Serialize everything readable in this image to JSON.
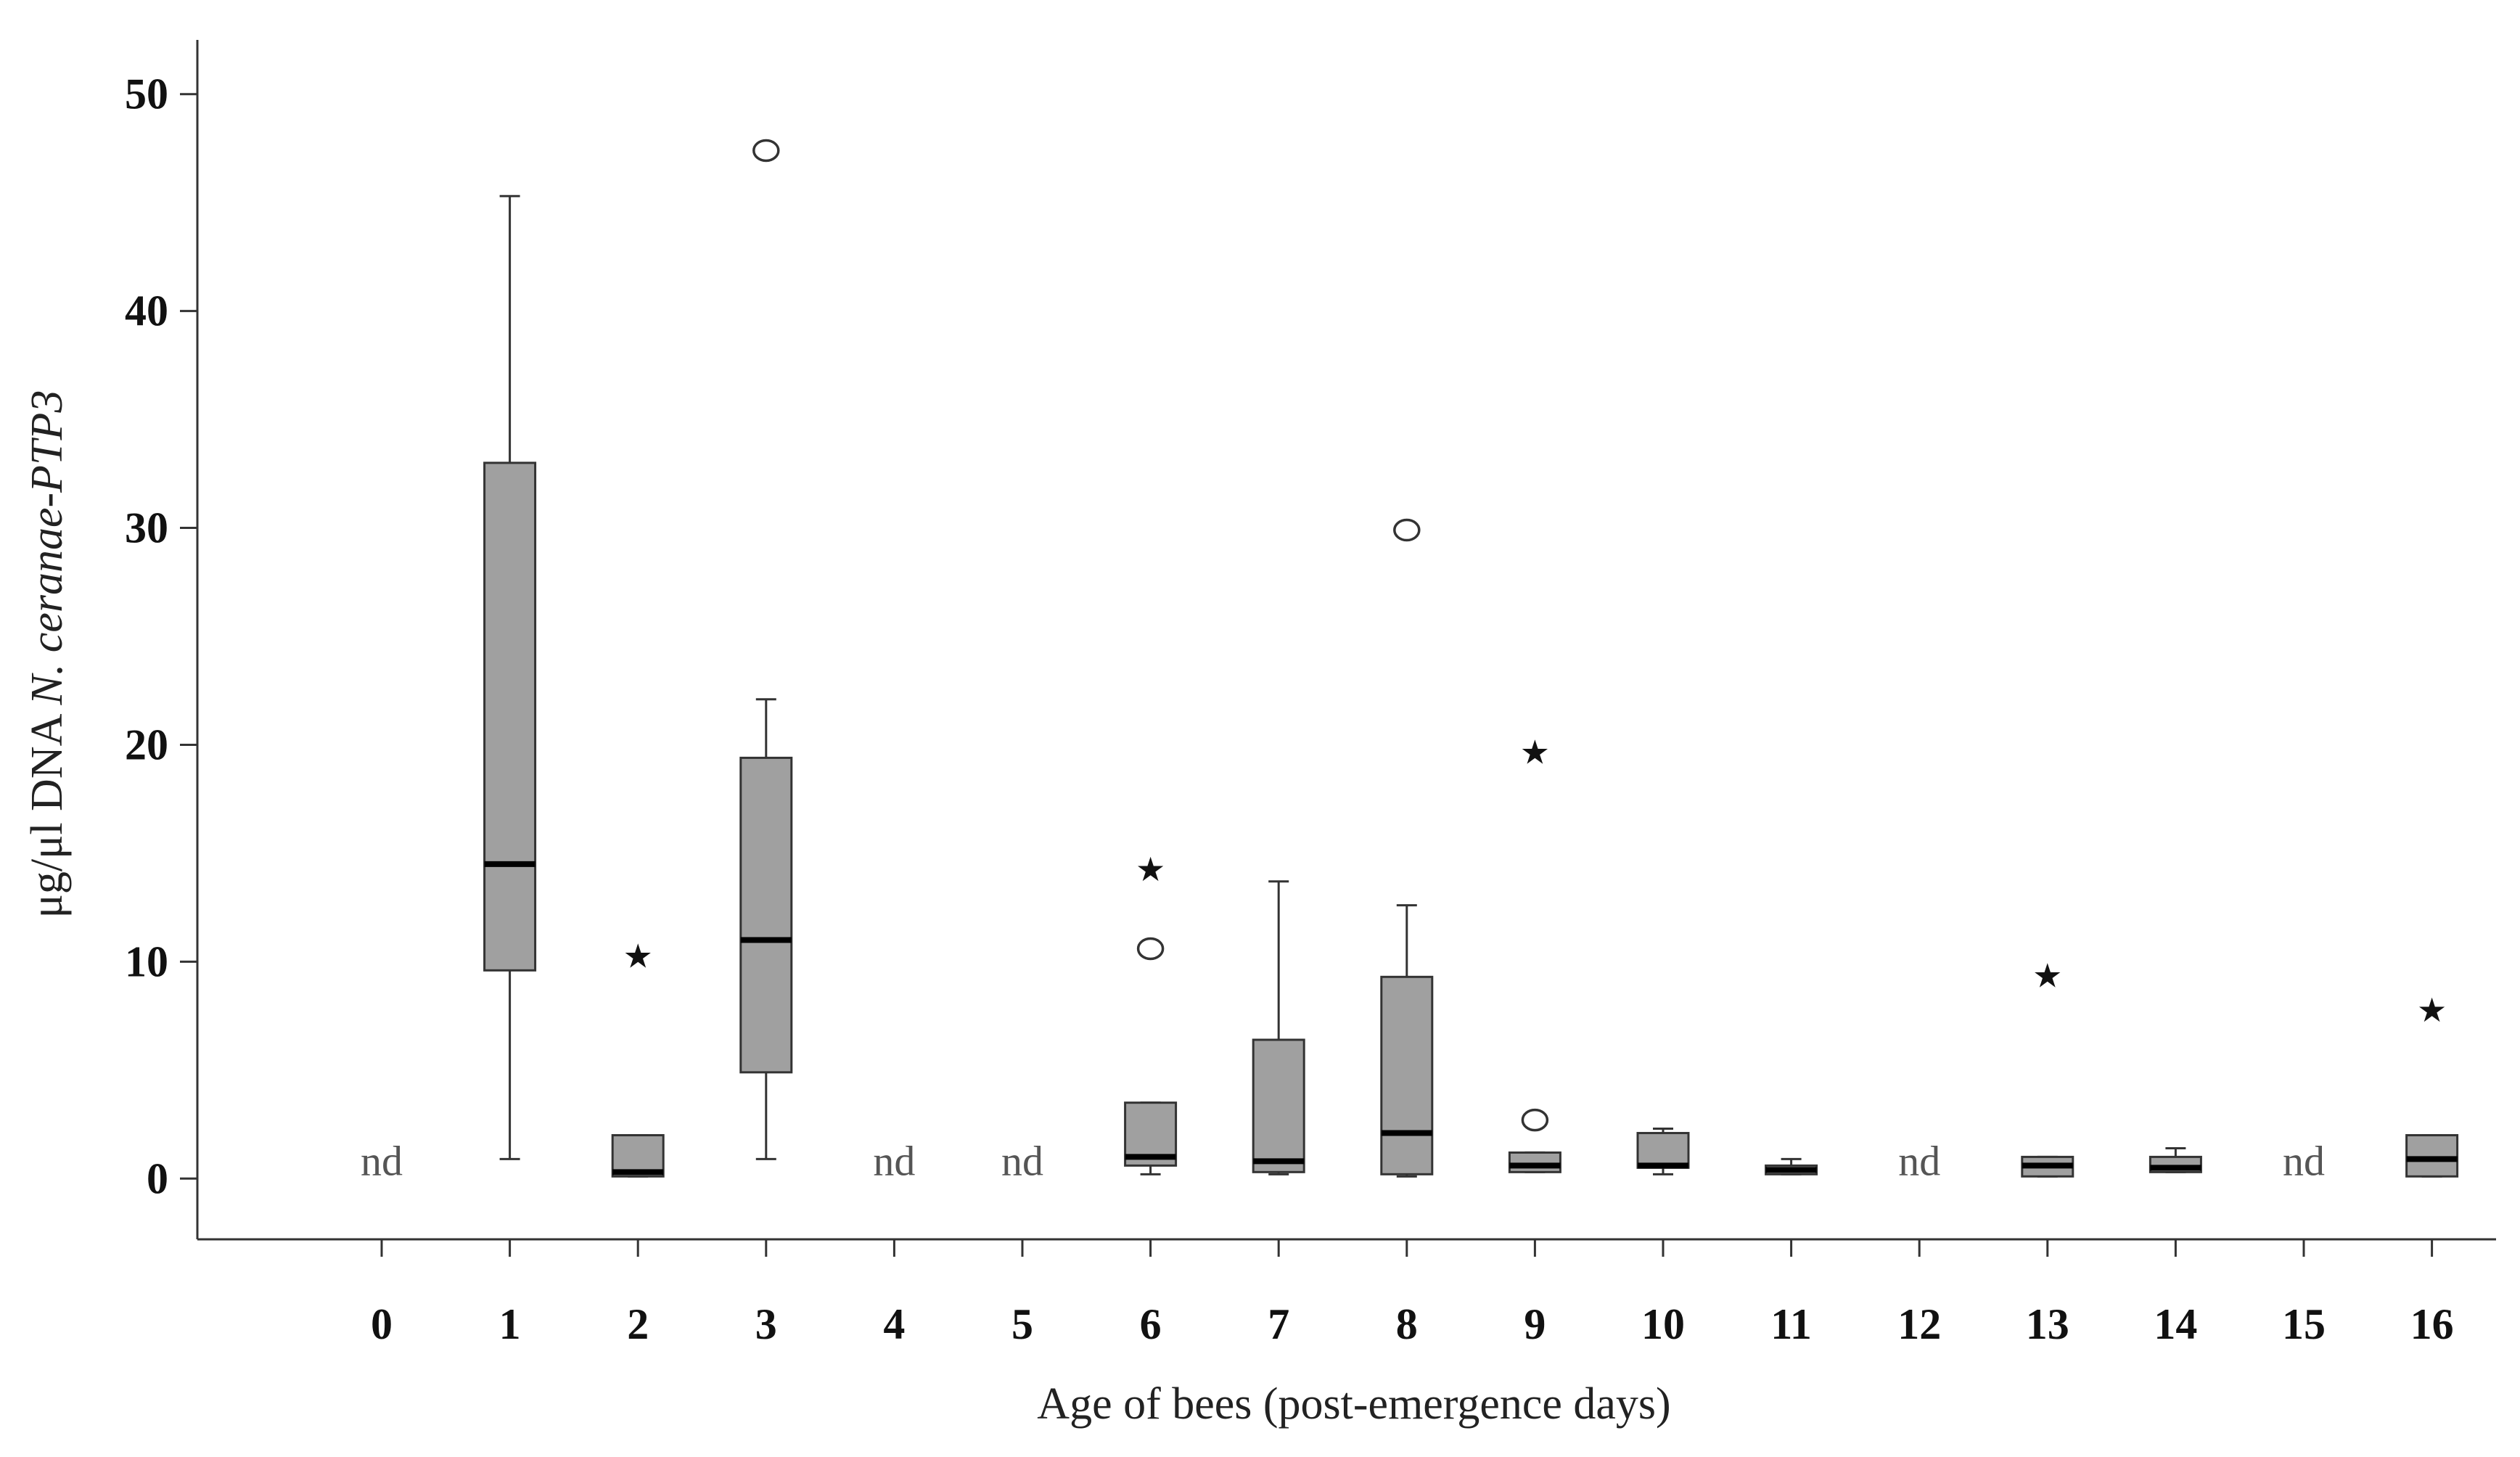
{
  "chart_data": {
    "type": "box",
    "xlabel": "Age of bees (post-emergence days)",
    "ylabel_plain": "μg/μl DNA ",
    "ylabel_italic": "N. ceranae-PTP3",
    "ylim": [
      -2.8,
      52.5
    ],
    "yticks": [
      0,
      10,
      20,
      30,
      40,
      50
    ],
    "ytick_labels": [
      "0",
      "10",
      "20",
      "30",
      "40",
      "50"
    ],
    "categories": [
      "0",
      "1",
      "2",
      "3",
      "4",
      "5",
      "6",
      "7",
      "8",
      "9",
      "10",
      "11",
      "12",
      "13",
      "14",
      "15",
      "16"
    ],
    "nd_label": "nd",
    "boxes": [
      {
        "category": "0",
        "nd": true
      },
      {
        "category": "1",
        "min": 0.9,
        "q1": 9.6,
        "median": 14.5,
        "q3": 33.0,
        "max": 45.3,
        "outliers": []
      },
      {
        "category": "2",
        "min": 0.1,
        "q1": 0.1,
        "median": 0.3,
        "q3": 2.0,
        "max": 2.0,
        "outliers": [
          {
            "value": 10.3,
            "marker": "star"
          }
        ]
      },
      {
        "category": "3",
        "min": 0.9,
        "q1": 4.9,
        "median": 11.0,
        "q3": 19.4,
        "max": 22.1,
        "outliers": [
          {
            "value": 47.4,
            "marker": "circle"
          }
        ]
      },
      {
        "category": "4",
        "nd": true
      },
      {
        "category": "5",
        "nd": true
      },
      {
        "category": "6",
        "min": 0.2,
        "q1": 0.6,
        "median": 1.0,
        "q3": 3.5,
        "max": 3.5,
        "outliers": [
          {
            "value": 10.6,
            "marker": "circle"
          },
          {
            "value": 14.3,
            "marker": "star"
          }
        ]
      },
      {
        "category": "7",
        "min": 0.2,
        "q1": 0.3,
        "median": 0.8,
        "q3": 6.4,
        "max": 13.7,
        "outliers": []
      },
      {
        "category": "8",
        "min": 0.1,
        "q1": 0.2,
        "median": 2.1,
        "q3": 9.3,
        "max": 12.6,
        "outliers": [
          {
            "value": 29.9,
            "marker": "circle"
          }
        ]
      },
      {
        "category": "9",
        "min": 0.3,
        "q1": 0.3,
        "median": 0.6,
        "q3": 1.2,
        "max": 1.2,
        "outliers": [
          {
            "value": 2.7,
            "marker": "circle"
          },
          {
            "value": 19.7,
            "marker": "star"
          }
        ]
      },
      {
        "category": "10",
        "min": 0.2,
        "q1": 0.5,
        "median": 0.6,
        "q3": 2.1,
        "max": 2.3,
        "outliers": []
      },
      {
        "category": "11",
        "min": 0.2,
        "q1": 0.2,
        "median": 0.4,
        "q3": 0.6,
        "max": 0.9,
        "outliers": []
      },
      {
        "category": "12",
        "nd": true
      },
      {
        "category": "13",
        "min": 0.1,
        "q1": 0.1,
        "median": 0.6,
        "q3": 1.0,
        "max": 1.0,
        "outliers": [
          {
            "value": 9.4,
            "marker": "star"
          }
        ]
      },
      {
        "category": "14",
        "min": 0.3,
        "q1": 0.3,
        "median": 0.5,
        "q3": 1.0,
        "max": 1.4,
        "outliers": []
      },
      {
        "category": "15",
        "nd": true
      },
      {
        "category": "16",
        "min": 0.1,
        "q1": 0.1,
        "median": 0.9,
        "q3": 2.0,
        "max": 2.0,
        "outliers": [
          {
            "value": 7.8,
            "marker": "star"
          }
        ]
      }
    ],
    "colors": {
      "box_fill": "#a0a0a0",
      "stroke": "#333333",
      "median": "#000000"
    },
    "grid": false,
    "legend": "none"
  }
}
